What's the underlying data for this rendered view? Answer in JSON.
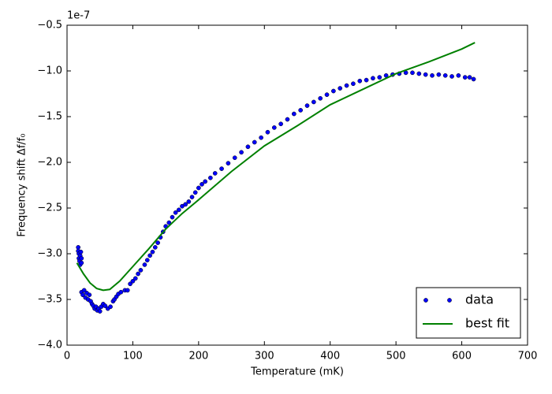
{
  "chart_data": {
    "type": "scatter",
    "xlabel": "Temperature (mK)",
    "ylabel": "Frequency shift Δf/f₀",
    "y_offset_label": "1e-7",
    "xlim": [
      0,
      700
    ],
    "xticks": [
      0,
      100,
      200,
      300,
      400,
      500,
      600,
      700
    ],
    "ylim": [
      -4.0,
      -0.5
    ],
    "yticks": [
      {
        "value": -0.5,
        "label": "−0.5"
      },
      {
        "value": -1.0,
        "label": "−1.0"
      },
      {
        "value": -1.5,
        "label": "−1.5"
      },
      {
        "value": -2.0,
        "label": "−2.0"
      },
      {
        "value": -2.5,
        "label": "−2.5"
      },
      {
        "value": -3.0,
        "label": "−3.0"
      },
      {
        "value": -3.5,
        "label": "−3.5"
      },
      {
        "value": -4.0,
        "label": "−4.0"
      }
    ],
    "legend": "lower right",
    "series": [
      {
        "name": "data",
        "type": "scatter",
        "color": "#0000ff",
        "x": [
          17,
          17,
          18,
          18,
          19,
          20,
          20,
          21,
          22,
          22,
          22,
          24,
          26,
          28,
          30,
          32,
          34,
          36,
          38,
          40,
          42,
          44,
          46,
          48,
          50,
          52,
          55,
          58,
          62,
          66,
          70,
          72,
          75,
          78,
          82,
          88,
          92,
          96,
          100,
          104,
          108,
          112,
          118,
          122,
          126,
          130,
          134,
          138,
          142,
          146,
          150,
          155,
          160,
          165,
          170,
          175,
          180,
          185,
          190,
          195,
          200,
          205,
          210,
          218,
          225,
          235,
          245,
          255,
          265,
          275,
          285,
          295,
          305,
          315,
          325,
          335,
          345,
          355,
          365,
          375,
          385,
          395,
          405,
          415,
          425,
          435,
          445,
          455,
          465,
          475,
          485,
          495,
          505,
          515,
          525,
          535,
          545,
          555,
          565,
          575,
          585,
          595,
          605,
          612,
          618
        ],
        "values": [
          -2.93,
          -2.97,
          -3.0,
          -3.05,
          -3.08,
          -3.12,
          -3.02,
          -2.98,
          -3.1,
          -3.05,
          -3.42,
          -3.45,
          -3.4,
          -3.48,
          -3.43,
          -3.5,
          -3.45,
          -3.52,
          -3.55,
          -3.57,
          -3.6,
          -3.58,
          -3.62,
          -3.6,
          -3.63,
          -3.58,
          -3.55,
          -3.57,
          -3.6,
          -3.58,
          -3.52,
          -3.5,
          -3.47,
          -3.44,
          -3.42,
          -3.4,
          -3.4,
          -3.33,
          -3.3,
          -3.27,
          -3.22,
          -3.18,
          -3.12,
          -3.07,
          -3.02,
          -2.98,
          -2.93,
          -2.88,
          -2.82,
          -2.76,
          -2.7,
          -2.66,
          -2.6,
          -2.55,
          -2.52,
          -2.48,
          -2.46,
          -2.43,
          -2.38,
          -2.33,
          -2.28,
          -2.24,
          -2.21,
          -2.17,
          -2.12,
          -2.07,
          -2.01,
          -1.95,
          -1.89,
          -1.83,
          -1.78,
          -1.73,
          -1.67,
          -1.62,
          -1.58,
          -1.53,
          -1.47,
          -1.43,
          -1.38,
          -1.34,
          -1.3,
          -1.26,
          -1.22,
          -1.19,
          -1.16,
          -1.14,
          -1.11,
          -1.1,
          -1.08,
          -1.07,
          -1.05,
          -1.04,
          -1.03,
          -1.02,
          -1.02,
          -1.03,
          -1.04,
          -1.05,
          -1.04,
          -1.05,
          -1.06,
          -1.05,
          -1.07,
          -1.07,
          -1.09
        ]
      },
      {
        "name": "best fit",
        "type": "line",
        "color": "#008000",
        "x": [
          15,
          25,
          35,
          45,
          55,
          65,
          80,
          100,
          125,
          150,
          175,
          200,
          250,
          300,
          350,
          400,
          450,
          500,
          550,
          600,
          620
        ],
        "values": [
          -3.1,
          -3.22,
          -3.32,
          -3.38,
          -3.4,
          -3.39,
          -3.3,
          -3.14,
          -2.94,
          -2.73,
          -2.56,
          -2.41,
          -2.1,
          -1.82,
          -1.6,
          -1.37,
          -1.2,
          -1.03,
          -0.9,
          -0.76,
          -0.69
        ]
      }
    ]
  }
}
